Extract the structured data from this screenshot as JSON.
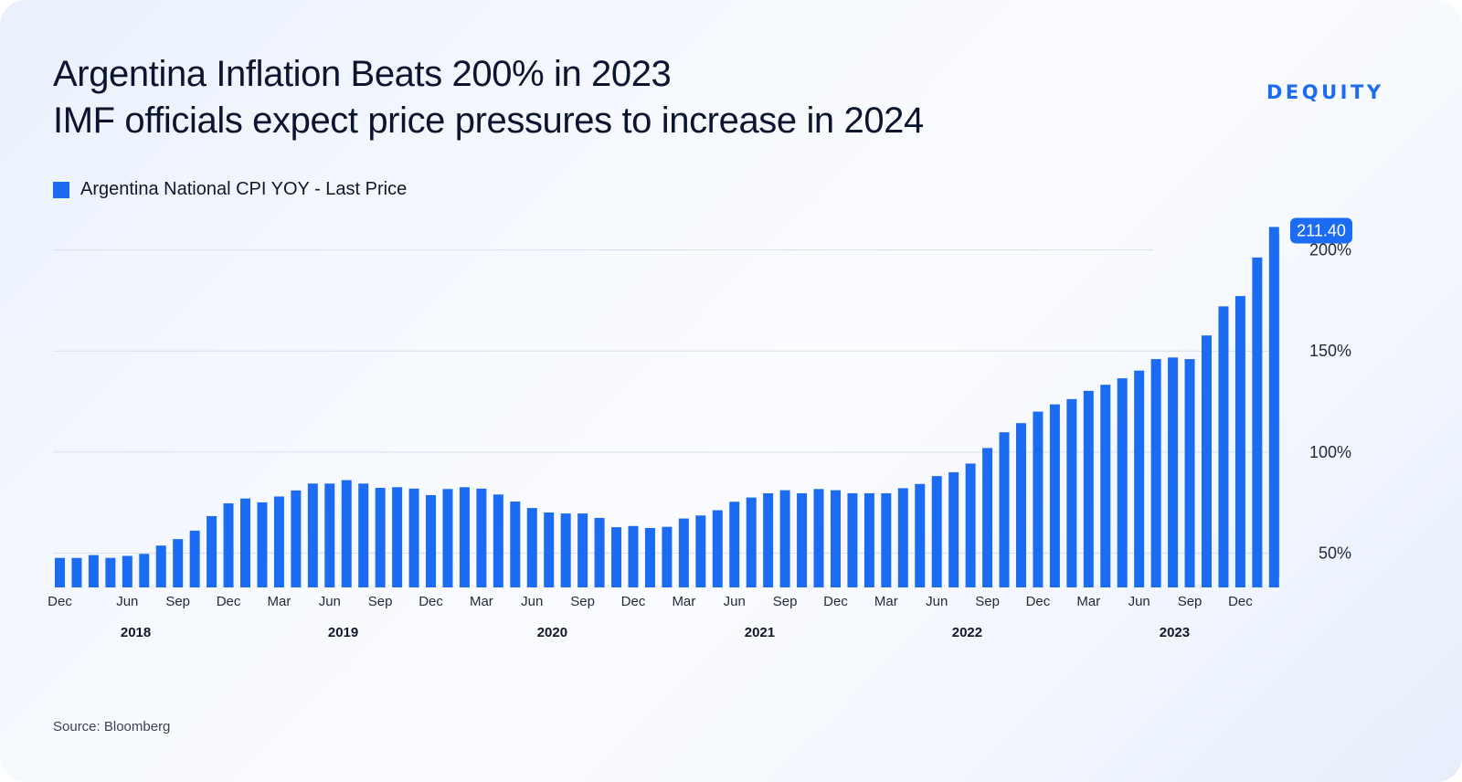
{
  "header": {
    "title_line1": "Argentina Inflation Beats 200% in 2023",
    "title_line2": "IMF officials expect price pressures to increase in 2024",
    "brand": "DEQUITY"
  },
  "legend": {
    "label": "Argentina National CPI YOY - Last Price",
    "color": "#1b6cf2"
  },
  "footer": {
    "source": "Source: Bloomberg"
  },
  "chart_data": {
    "type": "bar",
    "series": [
      {
        "name": "Argentina National CPI YOY - Last Price",
        "color": "#1b6cf2",
        "values": [
          47.6,
          47.6,
          49.0,
          47.6,
          48.6,
          49.6,
          53.7,
          56.9,
          61.1,
          68.3,
          74.6,
          77.0,
          75.1,
          78.0,
          81.0,
          84.4,
          84.4,
          86.1,
          84.4,
          82.3,
          82.6,
          81.9,
          78.7,
          81.7,
          82.6,
          81.9,
          79.0,
          75.5,
          72.3,
          70.1,
          69.6,
          69.6,
          67.4,
          62.8,
          63.4,
          62.4,
          63.0,
          67.1,
          68.6,
          71.2,
          75.4,
          77.5,
          79.6,
          81.1,
          79.6,
          81.7,
          81.1,
          79.6,
          79.6,
          79.6,
          82.1,
          84.2,
          88.1,
          90.0,
          94.3,
          102.0,
          109.8,
          114.3,
          120.0,
          123.6,
          126.2,
          130.3,
          133.3,
          136.5,
          140.3,
          146.0,
          146.8,
          146.0,
          157.7,
          172.1,
          177.2,
          196.3,
          211.4
        ]
      }
    ],
    "ylim": [
      33,
      222
    ],
    "yticks": [
      {
        "value": 50,
        "label": "50%"
      },
      {
        "value": 100,
        "label": "100%"
      },
      {
        "value": 150,
        "label": "150%"
      },
      {
        "value": 200,
        "label": "200%"
      }
    ],
    "month_labels": [
      {
        "index": 0,
        "label": "Dec"
      },
      {
        "index": 4,
        "label": "Jun"
      },
      {
        "index": 7,
        "label": "Sep"
      },
      {
        "index": 10,
        "label": "Dec"
      },
      {
        "index": 13,
        "label": "Mar"
      },
      {
        "index": 16,
        "label": "Jun"
      },
      {
        "index": 19,
        "label": "Sep"
      },
      {
        "index": 22,
        "label": "Dec"
      },
      {
        "index": 25,
        "label": "Mar"
      },
      {
        "index": 28,
        "label": "Jun"
      },
      {
        "index": 31,
        "label": "Sep"
      },
      {
        "index": 34,
        "label": "Dec"
      },
      {
        "index": 37,
        "label": "Mar"
      },
      {
        "index": 40,
        "label": "Jun"
      },
      {
        "index": 43,
        "label": "Sep"
      },
      {
        "index": 46,
        "label": "Dec"
      },
      {
        "index": 49,
        "label": "Mar"
      },
      {
        "index": 52,
        "label": "Jun"
      },
      {
        "index": 55,
        "label": "Sep"
      },
      {
        "index": 58,
        "label": "Dec"
      },
      {
        "index": 61,
        "label": "Mar"
      },
      {
        "index": 64,
        "label": "Jun"
      },
      {
        "index": 67,
        "label": "Sep"
      },
      {
        "index": 70,
        "label": "Dec"
      }
    ],
    "year_labels": [
      {
        "index": 4.5,
        "label": "2018"
      },
      {
        "index": 16.8,
        "label": "2019"
      },
      {
        "index": 29.2,
        "label": "2020"
      },
      {
        "index": 41.5,
        "label": "2021"
      },
      {
        "index": 53.8,
        "label": "2022"
      },
      {
        "index": 66.1,
        "label": "2023"
      }
    ],
    "last_value_label": "211.40",
    "grid": true
  }
}
